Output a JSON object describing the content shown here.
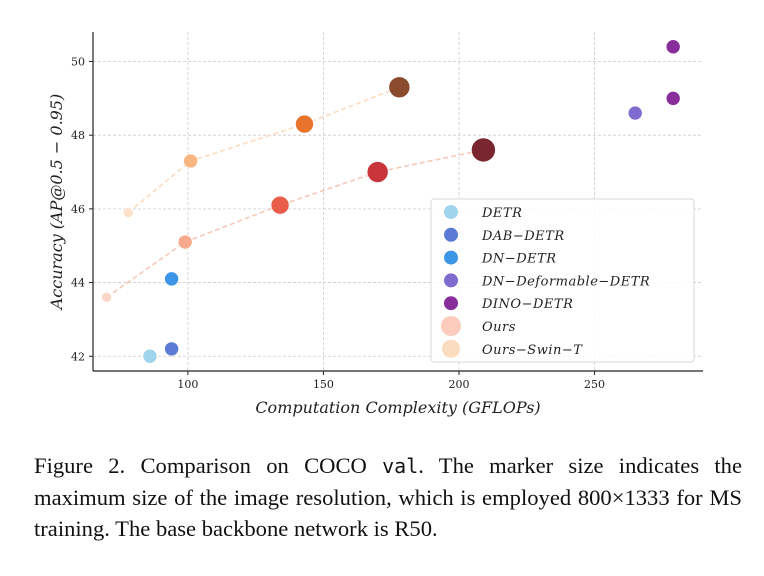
{
  "chart_data": {
    "type": "scatter",
    "xlabel": "Computation Complexity (GFLOPs)",
    "ylabel": "Accuracy (AP@0.5 − 0.95)",
    "xlim": [
      65,
      290
    ],
    "ylim": [
      41.6,
      50.8
    ],
    "xticks": [
      100,
      150,
      200,
      250
    ],
    "yticks": [
      42,
      44,
      46,
      48,
      50
    ],
    "grid": true,
    "legend_position": "lower-right",
    "series": [
      {
        "name": "DETR",
        "color": "#9fd4ec",
        "points": [
          {
            "x": 86,
            "y": 42.0,
            "size": 7
          }
        ]
      },
      {
        "name": "DAB−DETR",
        "color": "#5a7ad6",
        "points": [
          {
            "x": 94,
            "y": 42.2,
            "size": 7
          }
        ]
      },
      {
        "name": "DN−DETR",
        "color": "#3d95e8",
        "points": [
          {
            "x": 94,
            "y": 44.1,
            "size": 7
          }
        ]
      },
      {
        "name": "DN−Deformable−DETR",
        "color": "#7f6bd0",
        "points": [
          {
            "x": 265,
            "y": 48.6,
            "size": 7
          }
        ]
      },
      {
        "name": "DINO−DETR",
        "color": "#882e9a",
        "points": [
          {
            "x": 279,
            "y": 49.0,
            "size": 7
          },
          {
            "x": 279,
            "y": 50.4,
            "size": 7
          }
        ]
      },
      {
        "name": "Ours",
        "line": true,
        "line_color": "#f6c8b8",
        "points": [
          {
            "x": 70,
            "y": 43.6,
            "size": 5,
            "color": "#fbd6c8"
          },
          {
            "x": 99,
            "y": 45.1,
            "size": 7,
            "color": "#f6a98c"
          },
          {
            "x": 134,
            "y": 46.1,
            "size": 9,
            "color": "#ea5d4a"
          },
          {
            "x": 170,
            "y": 47.0,
            "size": 10.5,
            "color": "#c8353a"
          },
          {
            "x": 209,
            "y": 47.6,
            "size": 12,
            "color": "#7a2630"
          }
        ]
      },
      {
        "name": "Ours−Swin−T",
        "line": true,
        "line_color": "#fbdcbf",
        "points": [
          {
            "x": 78,
            "y": 45.9,
            "size": 5,
            "color": "#fde1c9"
          },
          {
            "x": 101,
            "y": 47.3,
            "size": 7,
            "color": "#f8b581"
          },
          {
            "x": 143,
            "y": 48.3,
            "size": 9,
            "color": "#e8742c"
          },
          {
            "x": 178,
            "y": 49.3,
            "size": 10.5,
            "color": "#8a4a2c"
          }
        ]
      }
    ],
    "legend": [
      {
        "label": "DETR",
        "color": "#9fd4ec",
        "size": 7
      },
      {
        "label": "DAB−DETR",
        "color": "#5a7ad6",
        "size": 7
      },
      {
        "label": "DN−DETR",
        "color": "#3d95e8",
        "size": 7
      },
      {
        "label": "DN−Deformable−DETR",
        "color": "#7f6bd0",
        "size": 7
      },
      {
        "label": "DINO−DETR",
        "color": "#882e9a",
        "size": 7
      },
      {
        "label": "Ours",
        "color": "#fbcbbb",
        "size": 10
      },
      {
        "label": "Ours−Swin−T",
        "color": "#fcdcbe",
        "size": 9
      }
    ]
  },
  "caption": {
    "prefix": "Figure 2. Comparison on COCO ",
    "code": "val",
    "rest": ". The marker size indicates the maximum size of the image resolution, which is employed 800×1333 for MS training. The base backbone network is R50."
  }
}
